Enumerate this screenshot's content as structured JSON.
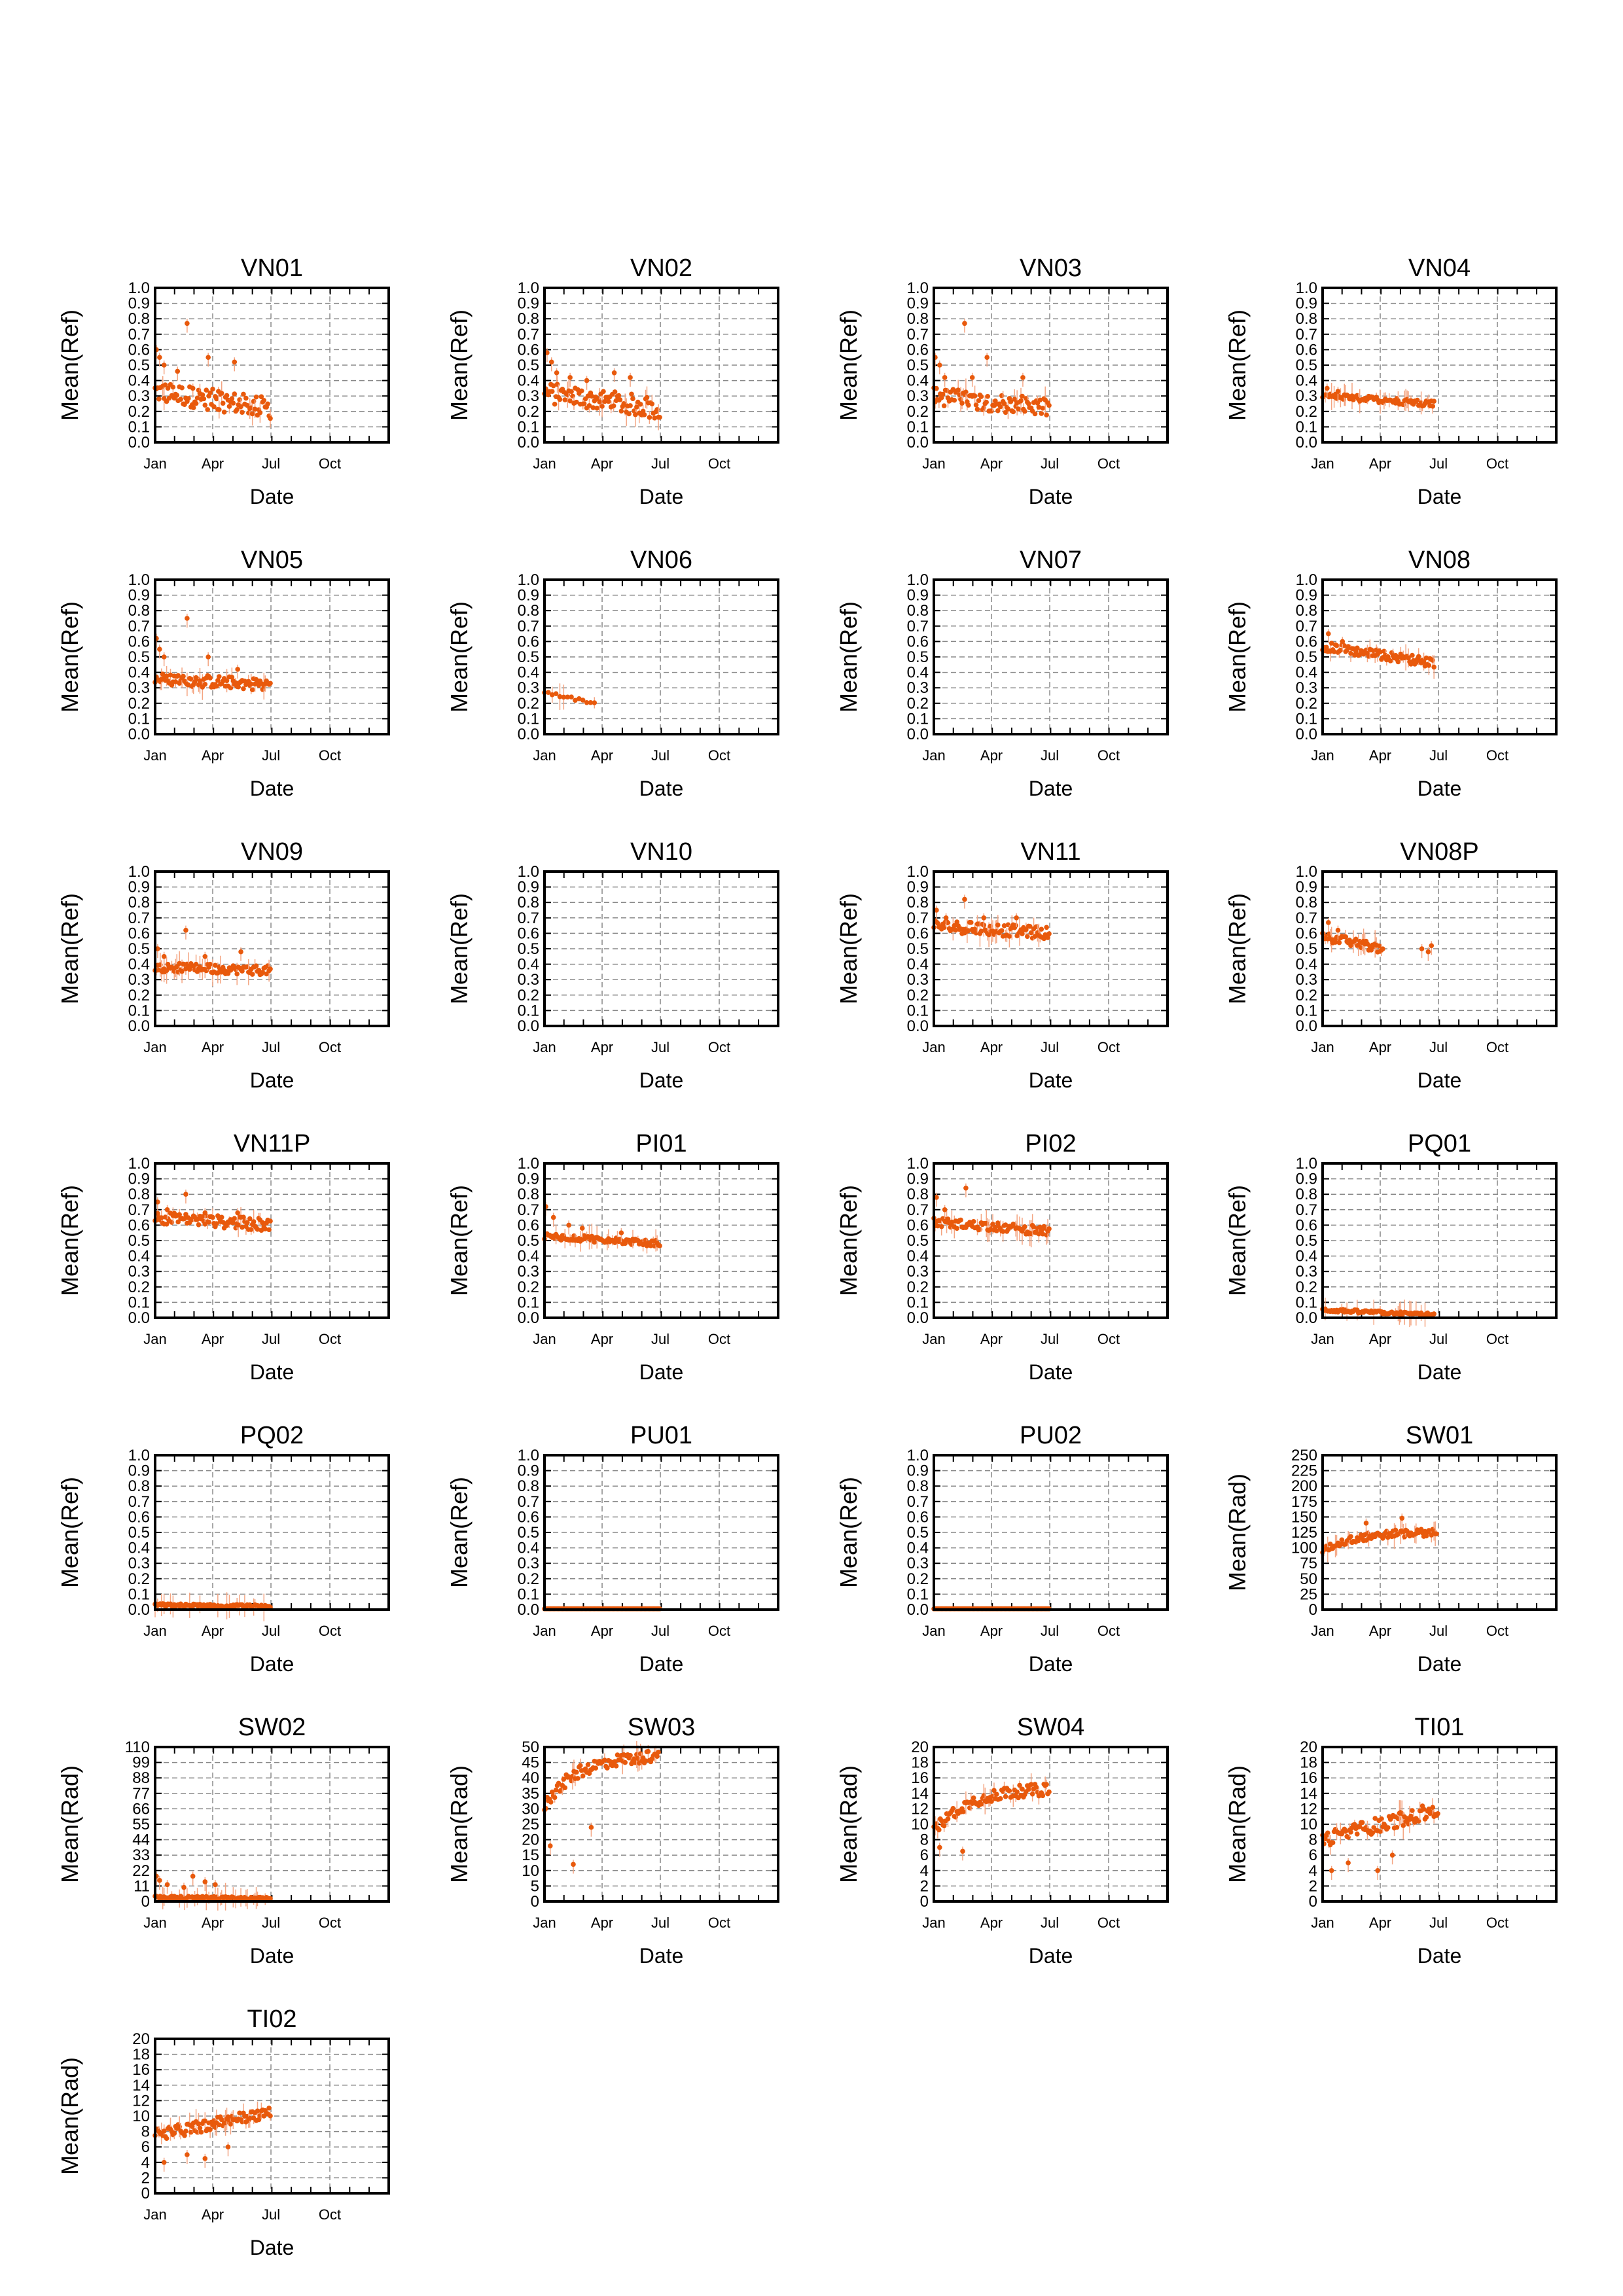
{
  "chart_data": {
    "type": "grid_of_scatter_plots",
    "marker_color": "#e8590c",
    "errorbar_color": "#f4a582",
    "xlabel": "Date",
    "x_ticks": [
      "Jan",
      "Apr",
      "Jul",
      "Oct"
    ],
    "panels": [
      {
        "title": "VN01",
        "ylabel": "Mean(Ref)",
        "ylim": [
          0,
          1.0
        ],
        "yticks": [
          "0.0",
          "0.1",
          "0.2",
          "0.3",
          "0.4",
          "0.5",
          "0.6",
          "0.7",
          "0.8",
          "0.9",
          "1.0"
        ],
        "x_range": [
          "Jan 1",
          "Jul 1"
        ],
        "level_start": 0.33,
        "level_end": 0.22,
        "spread": 0.07,
        "points": [
          {
            "x": "Jan 3",
            "y": 0.6
          },
          {
            "x": "Jan 8",
            "y": 0.55
          },
          {
            "x": "Jan 15",
            "y": 0.5
          },
          {
            "x": "Feb 5",
            "y": 0.46
          },
          {
            "x": "Feb 20",
            "y": 0.77
          },
          {
            "x": "Mar 1",
            "y": 0.35
          },
          {
            "x": "Mar 25",
            "y": 0.55
          },
          {
            "x": "Apr 10",
            "y": 0.33
          },
          {
            "x": "May 5",
            "y": 0.52
          }
        ]
      },
      {
        "title": "VN02",
        "ylabel": "Mean(Ref)",
        "ylim": [
          0,
          1.0
        ],
        "yticks": [
          "0.0",
          "0.1",
          "0.2",
          "0.3",
          "0.4",
          "0.5",
          "0.6",
          "0.7",
          "0.8",
          "0.9",
          "1.0"
        ],
        "x_range": [
          "Jan 1",
          "Jul 1"
        ],
        "level_start": 0.32,
        "level_end": 0.22,
        "spread": 0.07,
        "points": [
          {
            "x": "Jan 5",
            "y": 0.58
          },
          {
            "x": "Jan 12",
            "y": 0.52
          },
          {
            "x": "Jan 20",
            "y": 0.45
          },
          {
            "x": "Feb 10",
            "y": 0.42
          },
          {
            "x": "Mar 8",
            "y": 0.4
          },
          {
            "x": "Apr 20",
            "y": 0.45
          },
          {
            "x": "May 15",
            "y": 0.42
          }
        ]
      },
      {
        "title": "VN03",
        "ylabel": "Mean(Ref)",
        "ylim": [
          0,
          1.0
        ],
        "yticks": [
          "0.0",
          "0.1",
          "0.2",
          "0.3",
          "0.4",
          "0.5",
          "0.6",
          "0.7",
          "0.8",
          "0.9",
          "1.0"
        ],
        "x_range": [
          "Jan 1",
          "Jul 1"
        ],
        "level_start": 0.3,
        "level_end": 0.22,
        "spread": 0.06,
        "points": [
          {
            "x": "Jan 3",
            "y": 0.55
          },
          {
            "x": "Jan 10",
            "y": 0.5
          },
          {
            "x": "Jan 18",
            "y": 0.42
          },
          {
            "x": "Feb 18",
            "y": 0.77
          },
          {
            "x": "Mar 2",
            "y": 0.42
          },
          {
            "x": "Mar 25",
            "y": 0.55
          },
          {
            "x": "May 20",
            "y": 0.42
          }
        ]
      },
      {
        "title": "VN04",
        "ylabel": "Mean(Ref)",
        "ylim": [
          0,
          1.0
        ],
        "yticks": [
          "0.0",
          "0.1",
          "0.2",
          "0.3",
          "0.4",
          "0.5",
          "0.6",
          "0.7",
          "0.8",
          "0.9",
          "1.0"
        ],
        "x_range": [
          "Jan 1",
          "Jun 25"
        ],
        "level_start": 0.3,
        "level_end": 0.25,
        "spread": 0.02,
        "points": [
          {
            "x": "Jan 8",
            "y": 0.35
          },
          {
            "x": "Jan 25",
            "y": 0.33
          }
        ]
      },
      {
        "title": "VN05",
        "ylabel": "Mean(Ref)",
        "ylim": [
          0,
          1.0
        ],
        "yticks": [
          "0.0",
          "0.1",
          "0.2",
          "0.3",
          "0.4",
          "0.5",
          "0.6",
          "0.7",
          "0.8",
          "0.9",
          "1.0"
        ],
        "x_range": [
          "Jan 1",
          "Jul 1"
        ],
        "level_start": 0.36,
        "level_end": 0.32,
        "spread": 0.04,
        "points": [
          {
            "x": "Jan 3",
            "y": 0.62
          },
          {
            "x": "Jan 8",
            "y": 0.55
          },
          {
            "x": "Jan 15",
            "y": 0.5
          },
          {
            "x": "Feb 20",
            "y": 0.75
          },
          {
            "x": "Mar 25",
            "y": 0.5
          },
          {
            "x": "May 10",
            "y": 0.42
          }
        ]
      },
      {
        "title": "VN06",
        "ylabel": "Mean(Ref)",
        "ylim": [
          0,
          1.0
        ],
        "yticks": [
          "0.0",
          "0.1",
          "0.2",
          "0.3",
          "0.4",
          "0.5",
          "0.6",
          "0.7",
          "0.8",
          "0.9",
          "1.0"
        ],
        "x_range": [
          "Jan 1",
          "Mar 20"
        ],
        "level_start": 0.27,
        "level_end": 0.2,
        "spread": 0.01,
        "sparse": true,
        "points": []
      },
      {
        "title": "VN07",
        "ylabel": "Mean(Ref)",
        "ylim": [
          0,
          1.0
        ],
        "yticks": [
          "0.0",
          "0.1",
          "0.2",
          "0.3",
          "0.4",
          "0.5",
          "0.6",
          "0.7",
          "0.8",
          "0.9",
          "1.0"
        ],
        "x_range": null,
        "points": []
      },
      {
        "title": "VN08",
        "ylabel": "Mean(Ref)",
        "ylim": [
          0,
          1.0
        ],
        "yticks": [
          "0.0",
          "0.1",
          "0.2",
          "0.3",
          "0.4",
          "0.5",
          "0.6",
          "0.7",
          "0.8",
          "0.9",
          "1.0"
        ],
        "x_range": [
          "Jan 1",
          "Jun 25"
        ],
        "level_start": 0.57,
        "level_end": 0.46,
        "spread": 0.03,
        "points": [
          {
            "x": "Jan 10",
            "y": 0.65
          },
          {
            "x": "Feb 1",
            "y": 0.6
          }
        ]
      },
      {
        "title": "VN09",
        "ylabel": "Mean(Ref)",
        "ylim": [
          0,
          1.0
        ],
        "yticks": [
          "0.0",
          "0.1",
          "0.2",
          "0.3",
          "0.4",
          "0.5",
          "0.6",
          "0.7",
          "0.8",
          "0.9",
          "1.0"
        ],
        "x_range": [
          "Jan 1",
          "Jul 1"
        ],
        "level_start": 0.38,
        "level_end": 0.36,
        "spread": 0.03,
        "points": [
          {
            "x": "Jan 5",
            "y": 0.5
          },
          {
            "x": "Jan 15",
            "y": 0.45
          },
          {
            "x": "Feb 18",
            "y": 0.62
          },
          {
            "x": "Mar 20",
            "y": 0.45
          },
          {
            "x": "May 15",
            "y": 0.48
          }
        ]
      },
      {
        "title": "VN10",
        "ylabel": "Mean(Ref)",
        "ylim": [
          0,
          1.0
        ],
        "yticks": [
          "0.0",
          "0.1",
          "0.2",
          "0.3",
          "0.4",
          "0.5",
          "0.6",
          "0.7",
          "0.8",
          "0.9",
          "1.0"
        ],
        "x_range": null,
        "points": []
      },
      {
        "title": "VN11",
        "ylabel": "Mean(Ref)",
        "ylim": [
          0,
          1.0
        ],
        "yticks": [
          "0.0",
          "0.1",
          "0.2",
          "0.3",
          "0.4",
          "0.5",
          "0.6",
          "0.7",
          "0.8",
          "0.9",
          "1.0"
        ],
        "x_range": [
          "Jan 1",
          "Jul 1"
        ],
        "level_start": 0.65,
        "level_end": 0.6,
        "spread": 0.04,
        "points": [
          {
            "x": "Jan 5",
            "y": 0.75
          },
          {
            "x": "Jan 20",
            "y": 0.7
          },
          {
            "x": "Feb 18",
            "y": 0.82
          },
          {
            "x": "Mar 20",
            "y": 0.7
          },
          {
            "x": "May 10",
            "y": 0.7
          }
        ]
      },
      {
        "title": "VN08P",
        "ylabel": "Mean(Ref)",
        "ylim": [
          0,
          1.0
        ],
        "yticks": [
          "0.0",
          "0.1",
          "0.2",
          "0.3",
          "0.4",
          "0.5",
          "0.6",
          "0.7",
          "0.8",
          "0.9",
          "1.0"
        ],
        "x_range": [
          "Jan 1",
          "Apr 5"
        ],
        "level_start": 0.58,
        "level_end": 0.5,
        "spread": 0.03,
        "points": [
          {
            "x": "Jan 10",
            "y": 0.67
          },
          {
            "x": "Jan 25",
            "y": 0.62
          },
          {
            "x": "Jun 5",
            "y": 0.5
          },
          {
            "x": "Jun 15",
            "y": 0.48
          },
          {
            "x": "Jun 20",
            "y": 0.52
          }
        ]
      },
      {
        "title": "VN11P",
        "ylabel": "Mean(Ref)",
        "ylim": [
          0,
          1.0
        ],
        "yticks": [
          "0.0",
          "0.1",
          "0.2",
          "0.3",
          "0.4",
          "0.5",
          "0.6",
          "0.7",
          "0.8",
          "0.9",
          "1.0"
        ],
        "x_range": [
          "Jan 1",
          "Jul 1"
        ],
        "level_start": 0.65,
        "level_end": 0.6,
        "spread": 0.04,
        "points": [
          {
            "x": "Jan 5",
            "y": 0.75
          },
          {
            "x": "Jan 20",
            "y": 0.7
          },
          {
            "x": "Feb 18",
            "y": 0.8
          },
          {
            "x": "Mar 20",
            "y": 0.68
          },
          {
            "x": "May 10",
            "y": 0.68
          }
        ]
      },
      {
        "title": "PI01",
        "ylabel": "Mean(Ref)",
        "ylim": [
          0,
          1.0
        ],
        "yticks": [
          "0.0",
          "0.1",
          "0.2",
          "0.3",
          "0.4",
          "0.5",
          "0.6",
          "0.7",
          "0.8",
          "0.9",
          "1.0"
        ],
        "x_range": [
          "Jan 1",
          "Jul 1"
        ],
        "level_start": 0.53,
        "level_end": 0.48,
        "spread": 0.02,
        "points": [
          {
            "x": "Jan 3",
            "y": 0.72
          },
          {
            "x": "Jan 15",
            "y": 0.65
          },
          {
            "x": "Feb 8",
            "y": 0.6
          },
          {
            "x": "Mar 1",
            "y": 0.58
          },
          {
            "x": "May 1",
            "y": 0.55
          }
        ]
      },
      {
        "title": "PI02",
        "ylabel": "Mean(Ref)",
        "ylim": [
          0,
          1.0
        ],
        "yticks": [
          "0.0",
          "0.1",
          "0.2",
          "0.3",
          "0.4",
          "0.5",
          "0.6",
          "0.7",
          "0.8",
          "0.9",
          "1.0"
        ],
        "x_range": [
          "Jan 1",
          "Jul 1"
        ],
        "level_start": 0.62,
        "level_end": 0.56,
        "spread": 0.03,
        "points": [
          {
            "x": "Jan 5",
            "y": 0.78
          },
          {
            "x": "Feb 20",
            "y": 0.84
          },
          {
            "x": "Jan 18",
            "y": 0.7
          }
        ]
      },
      {
        "title": "PQ01",
        "ylabel": "Mean(Ref)",
        "ylim": [
          0,
          1.0
        ],
        "yticks": [
          "0.0",
          "0.1",
          "0.2",
          "0.3",
          "0.4",
          "0.5",
          "0.6",
          "0.7",
          "0.8",
          "0.9",
          "1.0"
        ],
        "x_range": [
          "Jan 1",
          "Jun 25"
        ],
        "level_start": 0.05,
        "level_end": 0.02,
        "spread": 0.01,
        "points": []
      },
      {
        "title": "PQ02",
        "ylabel": "Mean(Ref)",
        "ylim": [
          0,
          1.0
        ],
        "yticks": [
          "0.0",
          "0.1",
          "0.2",
          "0.3",
          "0.4",
          "0.5",
          "0.6",
          "0.7",
          "0.8",
          "0.9",
          "1.0"
        ],
        "x_range": [
          "Jan 1",
          "Jul 1"
        ],
        "level_start": 0.03,
        "level_end": 0.02,
        "spread": 0.01,
        "points": []
      },
      {
        "title": "PU01",
        "ylabel": "Mean(Ref)",
        "ylim": [
          0,
          1.0
        ],
        "yticks": [
          "0.0",
          "0.1",
          "0.2",
          "0.3",
          "0.4",
          "0.5",
          "0.6",
          "0.7",
          "0.8",
          "0.9",
          "1.0"
        ],
        "x_range": [
          "Jan 1",
          "Jul 1"
        ],
        "level_start": 0.005,
        "level_end": 0.005,
        "spread": 0.0,
        "points": []
      },
      {
        "title": "PU02",
        "ylabel": "Mean(Ref)",
        "ylim": [
          0,
          1.0
        ],
        "yticks": [
          "0.0",
          "0.1",
          "0.2",
          "0.3",
          "0.4",
          "0.5",
          "0.6",
          "0.7",
          "0.8",
          "0.9",
          "1.0"
        ],
        "x_range": [
          "Jan 1",
          "Jul 1"
        ],
        "level_start": 0.005,
        "level_end": 0.005,
        "spread": 0.0,
        "points": []
      },
      {
        "title": "SW01",
        "ylabel": "Mean(Rad)",
        "ylim": [
          0,
          250
        ],
        "yticks": [
          "0",
          "25",
          "50",
          "75",
          "100",
          "125",
          "150",
          "175",
          "200",
          "225",
          "250"
        ],
        "x_range": [
          "Jan 1",
          "Jun 28"
        ],
        "level_start": 95,
        "level_end": 125,
        "spread": 6,
        "curve": "saturating",
        "points": [
          {
            "x": "Mar 10",
            "y": 140
          },
          {
            "x": "May 5",
            "y": 148
          }
        ]
      },
      {
        "title": "SW02",
        "ylabel": "Mean(Rad)",
        "ylim": [
          0,
          110
        ],
        "yticks": [
          "0",
          "11",
          "22",
          "33",
          "44",
          "55",
          "66",
          "77",
          "88",
          "99",
          "110"
        ],
        "x_range": [
          "Jan 1",
          "Jul 1"
        ],
        "level_start": 3,
        "level_end": 2,
        "spread": 1,
        "points": [
          {
            "x": "Jan 3",
            "y": 18
          },
          {
            "x": "Jan 8",
            "y": 15
          },
          {
            "x": "Jan 20",
            "y": 12
          },
          {
            "x": "Feb 15",
            "y": 10
          },
          {
            "x": "Mar 1",
            "y": 18
          },
          {
            "x": "Mar 20",
            "y": 14
          },
          {
            "x": "Apr 5",
            "y": 12
          }
        ]
      },
      {
        "title": "SW03",
        "ylabel": "Mean(Rad)",
        "ylim": [
          0,
          50
        ],
        "yticks": [
          "0",
          "5",
          "10",
          "15",
          "20",
          "25",
          "30",
          "35",
          "40",
          "45",
          "50"
        ],
        "x_range": [
          "Jan 1",
          "Jun 28"
        ],
        "level_start": 31,
        "level_end": 47,
        "spread": 2,
        "curve": "saturating",
        "points": [
          {
            "x": "Jan 10",
            "y": 18
          },
          {
            "x": "Feb 15",
            "y": 12
          },
          {
            "x": "Mar 15",
            "y": 24
          }
        ]
      },
      {
        "title": "SW04",
        "ylabel": "Mean(Rad)",
        "ylim": [
          0,
          20
        ],
        "yticks": [
          "0",
          "2",
          "4",
          "6",
          "8",
          "10",
          "12",
          "14",
          "16",
          "18",
          "20"
        ],
        "x_range": [
          "Jan 1",
          "Jul 1"
        ],
        "level_start": 9,
        "level_end": 14.5,
        "spread": 0.8,
        "curve": "saturating",
        "points": [
          {
            "x": "Jan 10",
            "y": 7
          },
          {
            "x": "Feb 15",
            "y": 6.5
          }
        ]
      },
      {
        "title": "TI01",
        "ylabel": "Mean(Rad)",
        "ylim": [
          0,
          20
        ],
        "yticks": [
          "0",
          "2",
          "4",
          "6",
          "8",
          "10",
          "12",
          "14",
          "16",
          "18",
          "20"
        ],
        "x_range": [
          "Jan 1",
          "Jul 1"
        ],
        "level_start": 8,
        "level_end": 12,
        "spread": 1,
        "points": [
          {
            "x": "Jan 15",
            "y": 4
          },
          {
            "x": "Feb 10",
            "y": 5
          },
          {
            "x": "Mar 28",
            "y": 4
          },
          {
            "x": "Apr 20",
            "y": 6
          }
        ]
      },
      {
        "title": "TI02",
        "ylabel": "Mean(Rad)",
        "ylim": [
          0,
          20
        ],
        "yticks": [
          "0",
          "2",
          "4",
          "6",
          "8",
          "10",
          "12",
          "14",
          "16",
          "18",
          "20"
        ],
        "x_range": [
          "Jan 1",
          "Jul 1"
        ],
        "level_start": 7.5,
        "level_end": 10.5,
        "spread": 0.8,
        "points": [
          {
            "x": "Jan 15",
            "y": 4
          },
          {
            "x": "Feb 20",
            "y": 5
          },
          {
            "x": "Mar 20",
            "y": 4.5
          },
          {
            "x": "Apr 25",
            "y": 6
          }
        ]
      }
    ]
  }
}
